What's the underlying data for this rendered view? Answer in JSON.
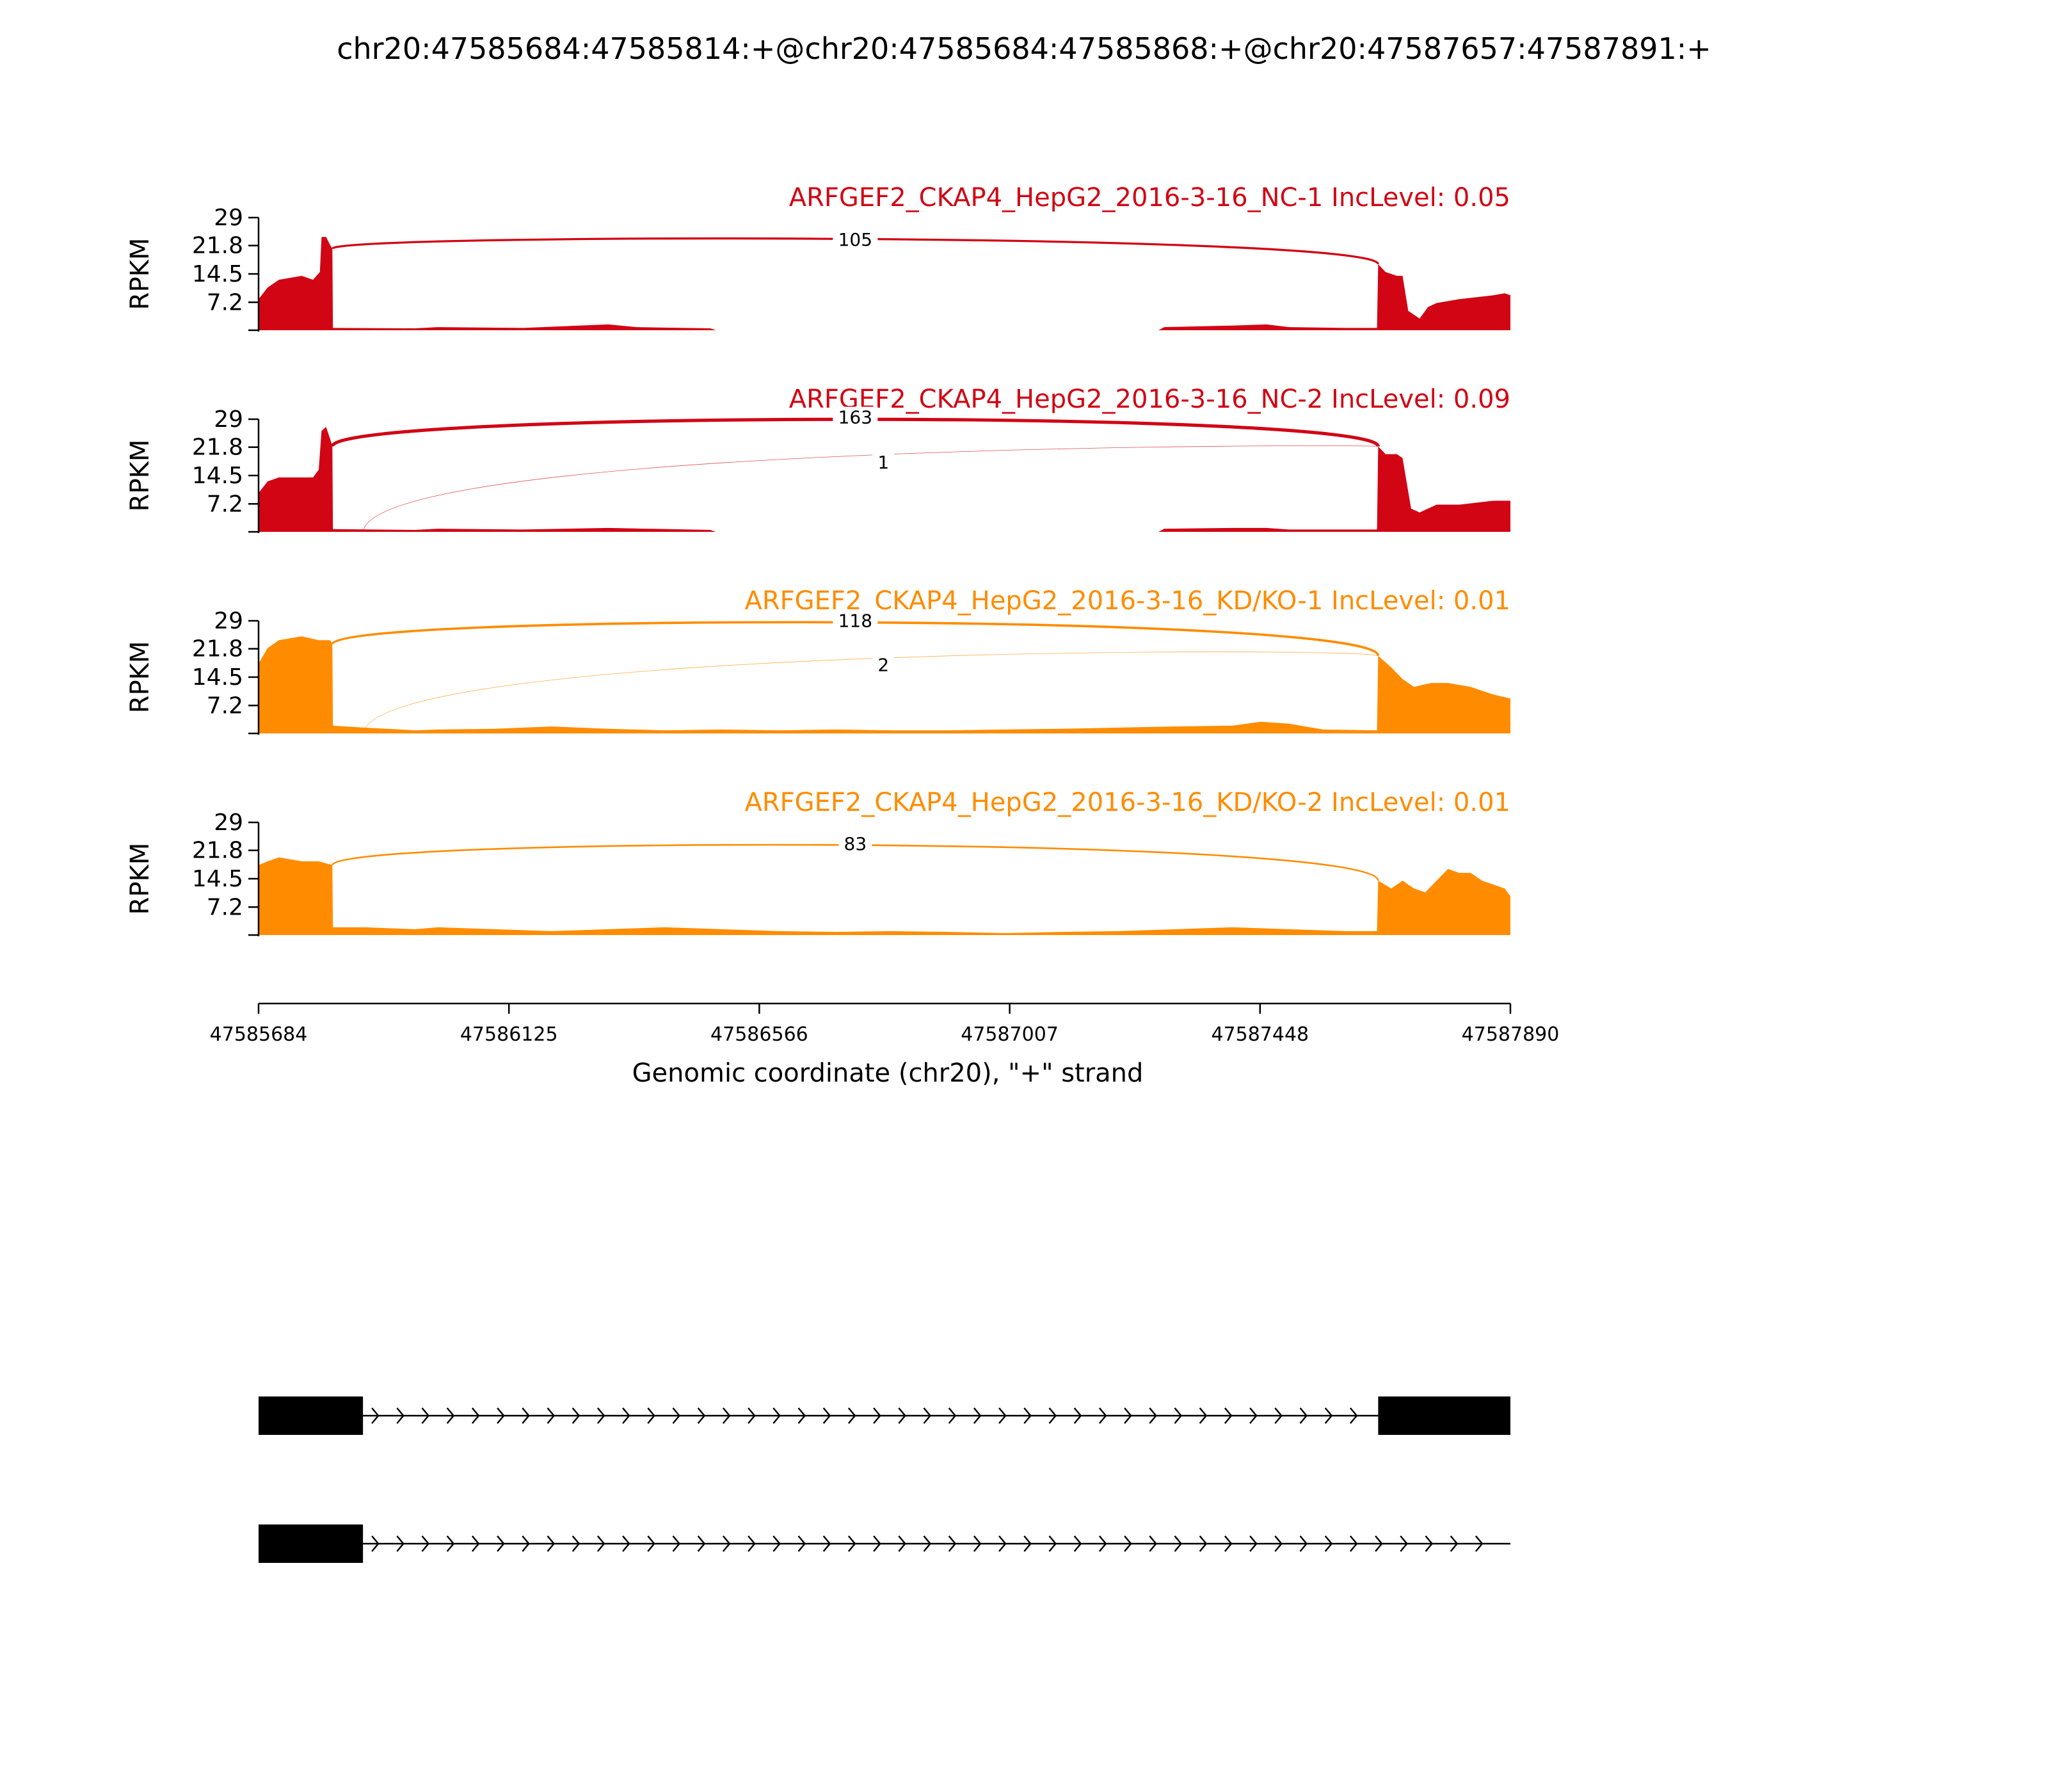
{
  "figure_title": "chr20:47585684:47585814:+@chr20:47585684:47585868:+@chr20:47587657:47587891:+",
  "colors": {
    "nc": "#d10514",
    "kd": "#ff8c00",
    "gene": "#000000"
  },
  "chart_data": {
    "type": "area",
    "title": "chr20:47585684:47585814:+@chr20:47585684:47585868:+@chr20:47587657:47587891:+",
    "xlabel": "Genomic coordinate (chr20), \"+\" strand",
    "ylabel": "RPKM",
    "xlim": [
      47585684,
      47587890
    ],
    "x_ticks": [
      "47585684",
      "47586125",
      "47586566",
      "47587007",
      "47587448",
      "47587890"
    ],
    "ylim": [
      0,
      29
    ],
    "y_ticks": [
      "29",
      "21.8",
      "14.5",
      "7.2"
    ],
    "series": [
      {
        "name": "ARFGEF2_CKAP4_HepG2_2016-3-16_NC-1 IncLevel: 0.05",
        "color": "nc",
        "coverage": [
          [
            47585684,
            8
          ],
          [
            47585700,
            11
          ],
          [
            47585720,
            13
          ],
          [
            47585760,
            14
          ],
          [
            47585780,
            13
          ],
          [
            47585792,
            15
          ],
          [
            47585795,
            24
          ],
          [
            47585803,
            24
          ],
          [
            47585810,
            22
          ],
          [
            47585814,
            21
          ],
          [
            47585815,
            0.6
          ],
          [
            47585960,
            0.5
          ],
          [
            47586000,
            0.8
          ],
          [
            47586150,
            0.6
          ],
          [
            47586300,
            1.5
          ],
          [
            47586350,
            0.8
          ],
          [
            47586480,
            0.5
          ],
          [
            47586490,
            0
          ],
          [
            47587000,
            0
          ],
          [
            47587270,
            0
          ],
          [
            47587280,
            0.8
          ],
          [
            47587400,
            1.2
          ],
          [
            47587460,
            1.5
          ],
          [
            47587500,
            0.8
          ],
          [
            47587600,
            0.6
          ],
          [
            47587655,
            0.6
          ],
          [
            47587657,
            17
          ],
          [
            47587670,
            15
          ],
          [
            47587690,
            14
          ],
          [
            47587700,
            14
          ],
          [
            47587710,
            5
          ],
          [
            47587730,
            3
          ],
          [
            47587745,
            6
          ],
          [
            47587760,
            7
          ],
          [
            47587800,
            8
          ],
          [
            47587860,
            9
          ],
          [
            47587880,
            9.5
          ],
          [
            47587890,
            9
          ]
        ],
        "junctions": [
          {
            "count": "105",
            "from": 47585814,
            "to": 47587657
          }
        ]
      },
      {
        "name": "ARFGEF2_CKAP4_HepG2_2016-3-16_NC-2 IncLevel: 0.09",
        "color": "nc",
        "coverage": [
          [
            47585684,
            10
          ],
          [
            47585700,
            13
          ],
          [
            47585720,
            14
          ],
          [
            47585760,
            14
          ],
          [
            47585780,
            14
          ],
          [
            47585790,
            16
          ],
          [
            47585795,
            26
          ],
          [
            47585803,
            27
          ],
          [
            47585810,
            24
          ],
          [
            47585814,
            22
          ],
          [
            47585815,
            0.7
          ],
          [
            47585960,
            0.5
          ],
          [
            47586000,
            0.8
          ],
          [
            47586150,
            0.6
          ],
          [
            47586300,
            1
          ],
          [
            47586480,
            0.5
          ],
          [
            47586490,
            0
          ],
          [
            47587270,
            0
          ],
          [
            47587280,
            0.8
          ],
          [
            47587400,
            1
          ],
          [
            47587460,
            1
          ],
          [
            47587500,
            0.6
          ],
          [
            47587655,
            0.6
          ],
          [
            47587657,
            22
          ],
          [
            47587670,
            20
          ],
          [
            47587690,
            20
          ],
          [
            47587700,
            19
          ],
          [
            47587715,
            6
          ],
          [
            47587730,
            5
          ],
          [
            47587745,
            6
          ],
          [
            47587760,
            7
          ],
          [
            47587800,
            7
          ],
          [
            47587860,
            8
          ],
          [
            47587890,
            8
          ]
        ],
        "junctions": [
          {
            "count": "163",
            "from": 47585814,
            "to": 47587657
          },
          {
            "count": "1",
            "from": 47585868,
            "to": 47587657
          }
        ]
      },
      {
        "name": "ARFGEF2_CKAP4_HepG2_2016-3-16_KD/KO-1 IncLevel: 0.01",
        "color": "kd",
        "coverage": [
          [
            47585684,
            18
          ],
          [
            47585700,
            22
          ],
          [
            47585720,
            24
          ],
          [
            47585760,
            25
          ],
          [
            47585790,
            24
          ],
          [
            47585810,
            24
          ],
          [
            47585814,
            23
          ],
          [
            47585815,
            2
          ],
          [
            47585870,
            1.5
          ],
          [
            47585960,
            0.8
          ],
          [
            47586000,
            1
          ],
          [
            47586100,
            1.2
          ],
          [
            47586200,
            1.8
          ],
          [
            47586300,
            1.2
          ],
          [
            47586400,
            0.8
          ],
          [
            47586500,
            1
          ],
          [
            47586600,
            0.8
          ],
          [
            47586700,
            1
          ],
          [
            47586800,
            0.8
          ],
          [
            47586900,
            0.8
          ],
          [
            47587000,
            1
          ],
          [
            47587100,
            1.2
          ],
          [
            47587200,
            1.5
          ],
          [
            47587300,
            1.8
          ],
          [
            47587400,
            2
          ],
          [
            47587450,
            3
          ],
          [
            47587500,
            2.5
          ],
          [
            47587560,
            1
          ],
          [
            47587655,
            0.8
          ],
          [
            47587657,
            20
          ],
          [
            47587680,
            17
          ],
          [
            47587700,
            14
          ],
          [
            47587720,
            12
          ],
          [
            47587750,
            13
          ],
          [
            47587780,
            13
          ],
          [
            47587820,
            12
          ],
          [
            47587860,
            10
          ],
          [
            47587890,
            9
          ]
        ],
        "junctions": [
          {
            "count": "118",
            "from": 47585814,
            "to": 47587657
          },
          {
            "count": "2",
            "from": 47585868,
            "to": 47587657
          }
        ]
      },
      {
        "name": "ARFGEF2_CKAP4_HepG2_2016-3-16_KD/KO-2 IncLevel: 0.01",
        "color": "kd",
        "coverage": [
          [
            47585684,
            18
          ],
          [
            47585700,
            19
          ],
          [
            47585720,
            20
          ],
          [
            47585760,
            19
          ],
          [
            47585790,
            19
          ],
          [
            47585814,
            18
          ],
          [
            47585815,
            2
          ],
          [
            47585870,
            2
          ],
          [
            47585960,
            1.5
          ],
          [
            47586000,
            2
          ],
          [
            47586100,
            1.5
          ],
          [
            47586200,
            1
          ],
          [
            47586300,
            1.5
          ],
          [
            47586400,
            2
          ],
          [
            47586500,
            1.5
          ],
          [
            47586600,
            1
          ],
          [
            47586700,
            0.8
          ],
          [
            47586800,
            1
          ],
          [
            47586900,
            0.8
          ],
          [
            47587000,
            0.5
          ],
          [
            47587100,
            0.8
          ],
          [
            47587200,
            1
          ],
          [
            47587300,
            1.5
          ],
          [
            47587400,
            2
          ],
          [
            47587500,
            1.5
          ],
          [
            47587600,
            1
          ],
          [
            47587655,
            1
          ],
          [
            47587657,
            14
          ],
          [
            47587680,
            12
          ],
          [
            47587700,
            14
          ],
          [
            47587720,
            12
          ],
          [
            47587740,
            11
          ],
          [
            47587760,
            14
          ],
          [
            47587780,
            17
          ],
          [
            47587800,
            16
          ],
          [
            47587820,
            16
          ],
          [
            47587840,
            14
          ],
          [
            47587860,
            13
          ],
          [
            47587880,
            12
          ],
          [
            47587890,
            10
          ]
        ],
        "junctions": [
          {
            "count": "83",
            "from": 47585814,
            "to": 47587657
          }
        ]
      }
    ],
    "isoforms": [
      {
        "exons": [
          [
            47585684,
            47585868
          ],
          [
            47587657,
            47587890
          ]
        ],
        "intron_end": 47587657
      },
      {
        "exons": [
          [
            47585684,
            47585868
          ]
        ],
        "intron_end": 47587890
      }
    ]
  }
}
